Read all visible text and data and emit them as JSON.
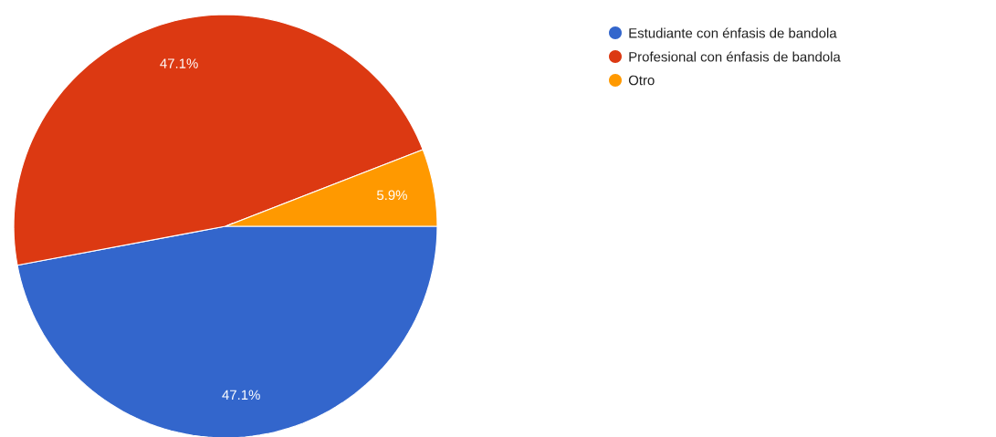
{
  "chart_data": {
    "type": "pie",
    "categories": [
      "Estudiante con énfasis de bandola",
      "Profesional con énfasis de bandola",
      "Otro"
    ],
    "values": [
      47.1,
      47.1,
      5.9
    ],
    "value_labels": [
      "47.1%",
      "47.1%",
      "5.9%"
    ],
    "colors": [
      "#3366cc",
      "#dc3912",
      "#ff9900"
    ],
    "legend": "top right"
  }
}
